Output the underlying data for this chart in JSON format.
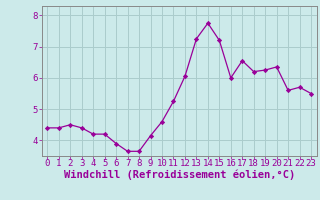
{
  "x": [
    0,
    1,
    2,
    3,
    4,
    5,
    6,
    7,
    8,
    9,
    10,
    11,
    12,
    13,
    14,
    15,
    16,
    17,
    18,
    19,
    20,
    21,
    22,
    23
  ],
  "y": [
    4.4,
    4.4,
    4.5,
    4.4,
    4.2,
    4.2,
    3.9,
    3.65,
    3.65,
    4.15,
    4.6,
    5.25,
    6.05,
    7.25,
    7.75,
    7.2,
    6.0,
    6.55,
    6.2,
    6.25,
    6.35,
    5.6,
    5.7,
    5.5
  ],
  "line_color": "#990099",
  "marker": "D",
  "marker_size": 2.2,
  "background_color": "#cceaea",
  "grid_color": "#aacccc",
  "xlabel": "Windchill (Refroidissement éolien,°C)",
  "xlim": [
    -0.5,
    23.5
  ],
  "ylim": [
    3.5,
    8.3
  ],
  "yticks": [
    4,
    5,
    6,
    7,
    8
  ],
  "xtick_labels": [
    "0",
    "1",
    "2",
    "3",
    "4",
    "5",
    "6",
    "7",
    "8",
    "9",
    "10",
    "11",
    "12",
    "13",
    "14",
    "15",
    "16",
    "17",
    "18",
    "19",
    "20",
    "21",
    "22",
    "23"
  ],
  "tick_color": "#990099",
  "label_color": "#990099",
  "spine_color": "#888888",
  "tick_fontsize": 6.5,
  "xlabel_fontsize": 7.5
}
